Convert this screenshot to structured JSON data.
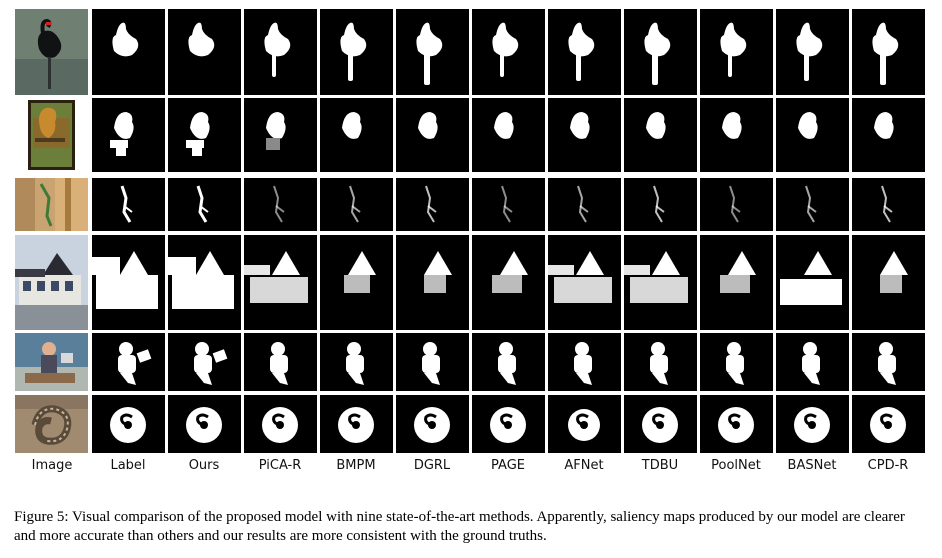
{
  "columns": [
    "Image",
    "Label",
    "Ours",
    "PiCA-R",
    "BMPM",
    "DGRL",
    "PAGE",
    "AFNet",
    "TDBU",
    "PoolNet",
    "BASNet",
    "CPD-R"
  ],
  "rows": [
    "swan",
    "bird",
    "lizard",
    "house",
    "child",
    "snake"
  ],
  "caption": "Figure 5: Visual comparison of the proposed model with nine state-of-the-art methods. Apparently, saliency maps produced by our model are clearer and more accurate than others and our results are more consistent with the ground truths."
}
